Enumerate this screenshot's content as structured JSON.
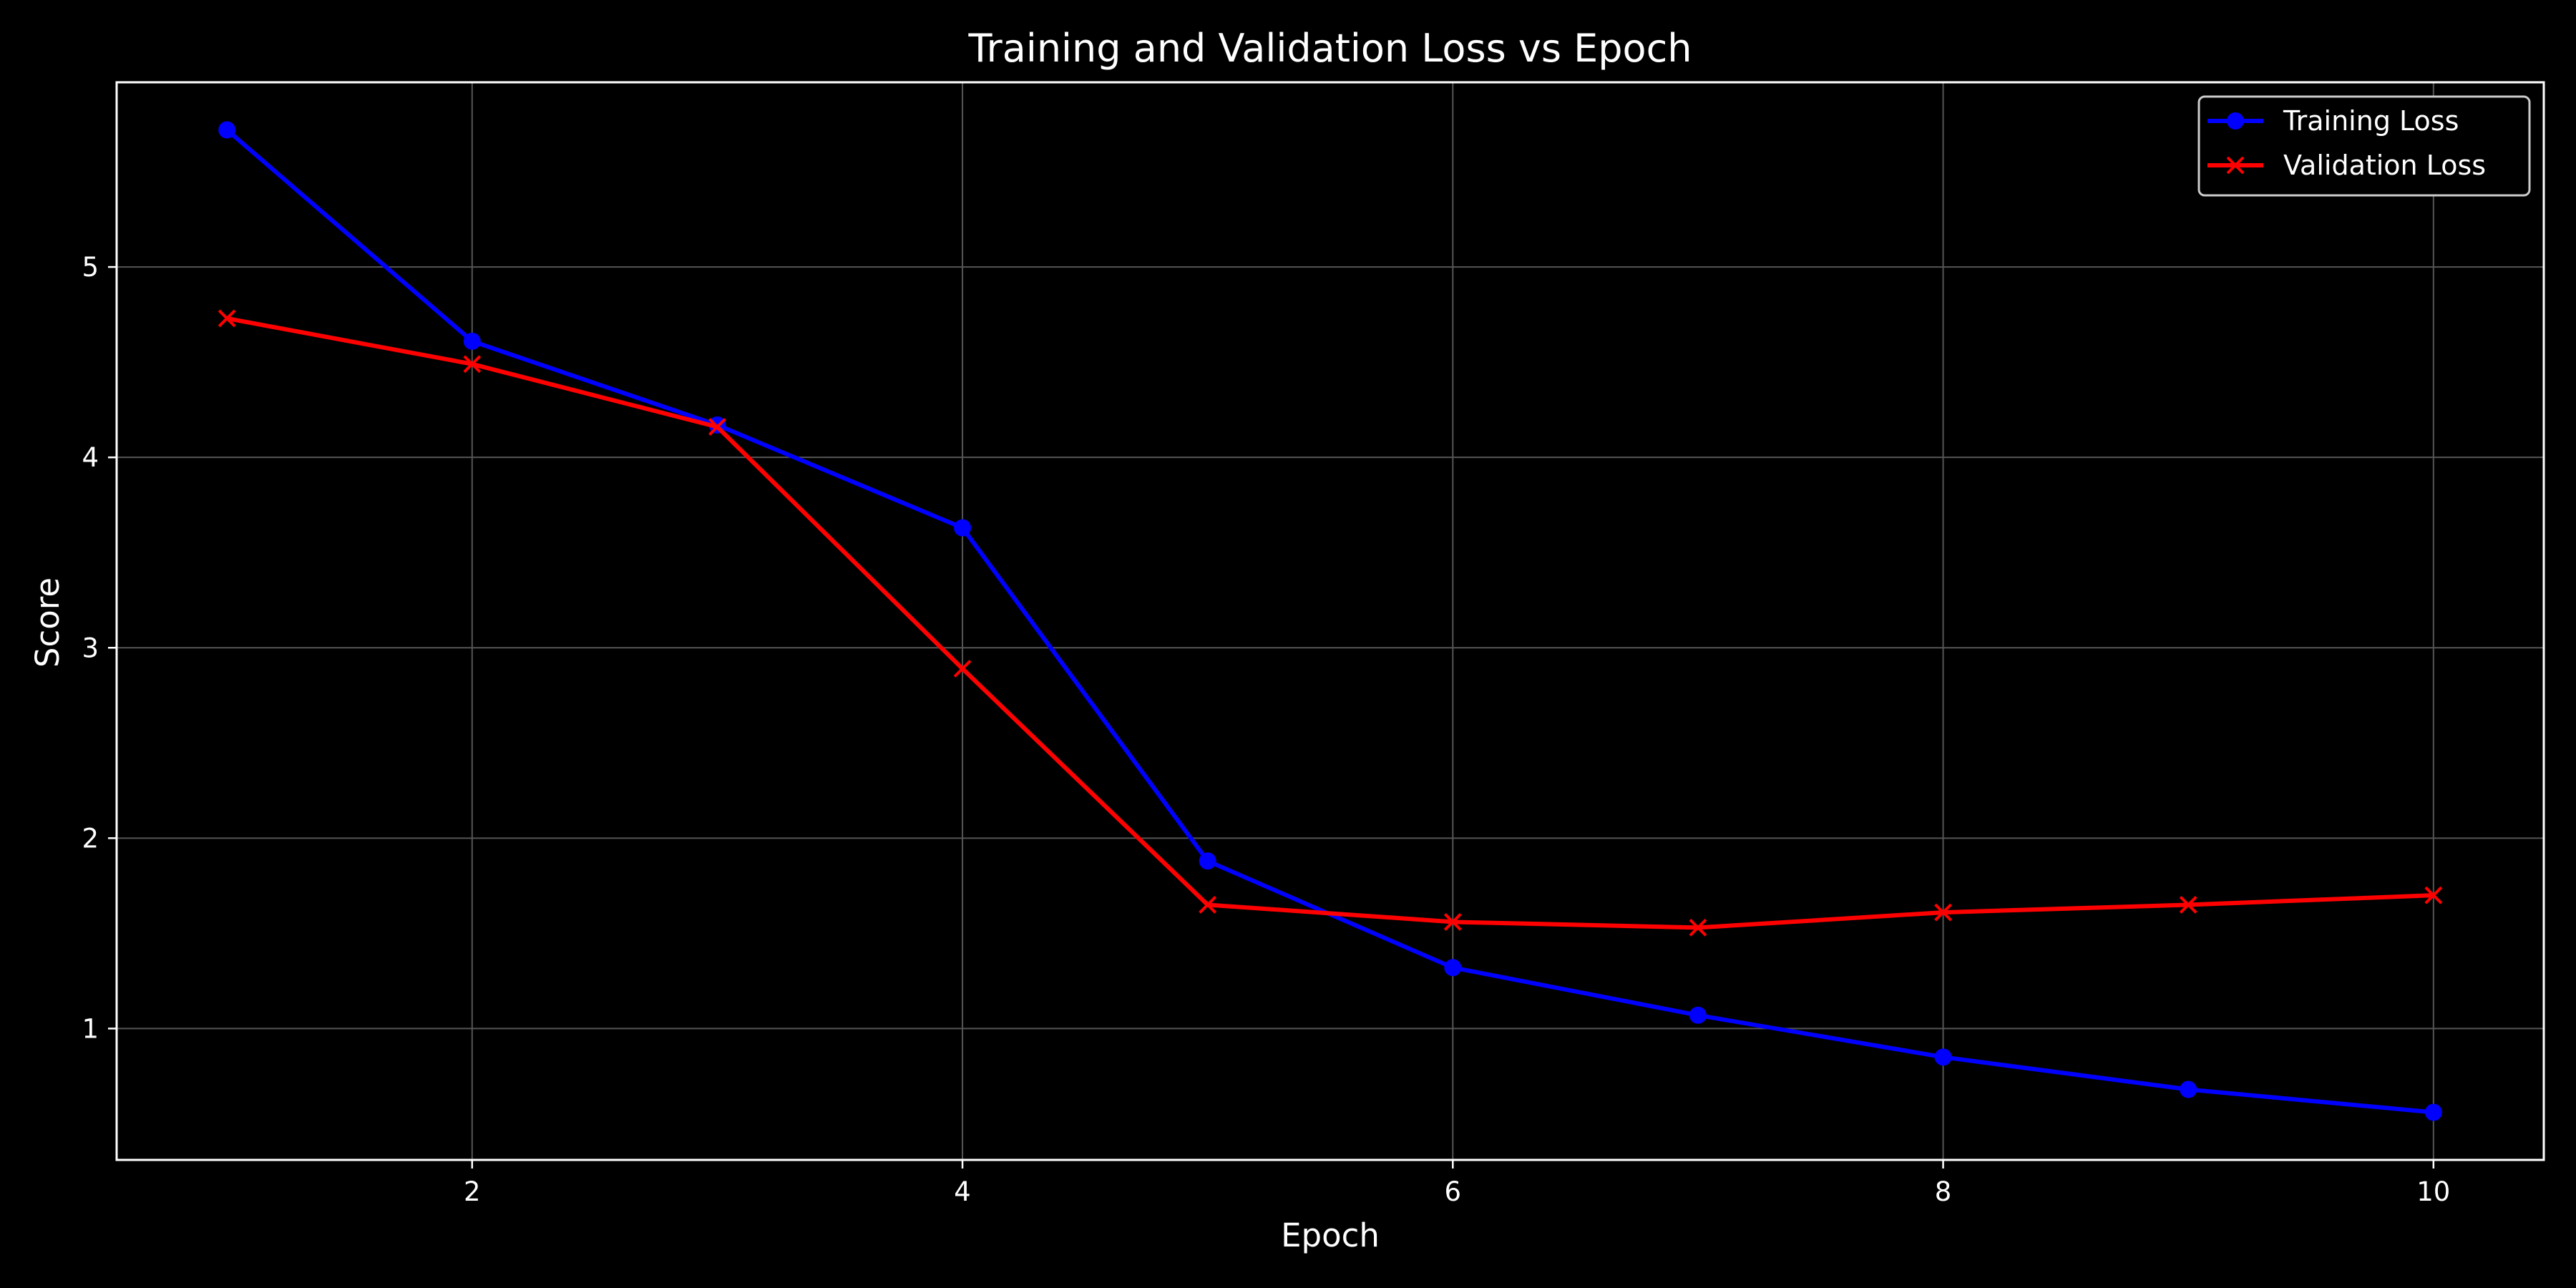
{
  "chart_data": {
    "type": "line",
    "title": "Training and Validation Loss vs Epoch",
    "xlabel": "Epoch",
    "ylabel": "Score",
    "x": [
      1,
      2,
      3,
      4,
      5,
      6,
      7,
      8,
      9,
      10
    ],
    "xlim": [
      0.55,
      10.45
    ],
    "ylim": [
      0.31,
      5.97
    ],
    "xticks": [
      2,
      4,
      6,
      8,
      10
    ],
    "yticks": [
      1,
      2,
      3,
      4,
      5
    ],
    "grid": true,
    "legend_position": "top-right",
    "series": [
      {
        "name": "Training Loss",
        "color": "#0000ff",
        "marker": "circle",
        "values": [
          5.72,
          4.61,
          4.17,
          3.63,
          1.88,
          1.32,
          1.07,
          0.85,
          0.68,
          0.56
        ]
      },
      {
        "name": "Validation Loss",
        "color": "#ff0000",
        "marker": "x",
        "values": [
          4.73,
          4.49,
          4.16,
          2.89,
          1.65,
          1.56,
          1.53,
          1.61,
          1.65,
          1.7
        ]
      }
    ]
  },
  "colors": {
    "background": "#000000",
    "axes": "#ffffff",
    "grid": "#555555",
    "text": "#ffffff"
  }
}
